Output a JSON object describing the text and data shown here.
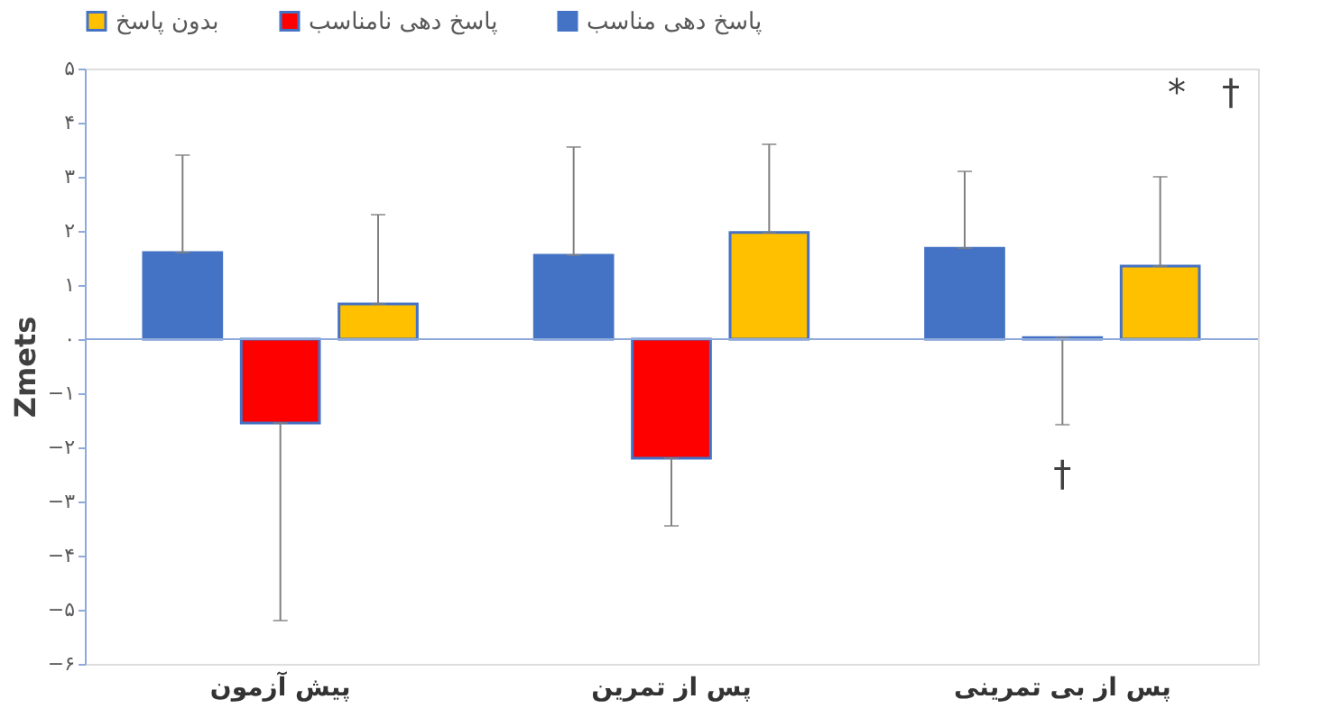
{
  "chart_data": {
    "type": "bar",
    "ylabel": "Zmets",
    "categories": [
      "پیش آزمون",
      "پس از تمرین",
      "پس از بی تمرینی"
    ],
    "series": [
      {
        "name": "پاسخ دهی مناسب",
        "color": "#4472c4",
        "values": [
          1.6,
          1.55,
          1.68
        ],
        "errors": [
          [
            1.6,
            3.4
          ],
          [
            1.55,
            3.55
          ],
          [
            1.68,
            3.1
          ]
        ]
      },
      {
        "name": "پاسخ دهی نامناسب",
        "color": "#ff0000",
        "values": [
          -1.55,
          -2.2,
          0.03
        ],
        "errors": [
          [
            -5.2,
            -1.55
          ],
          [
            -3.45,
            -2.2
          ],
          [
            -1.58,
            0.03
          ]
        ]
      },
      {
        "name": "بدون پاسخ",
        "color": "#ffc000",
        "values": [
          0.65,
          1.97,
          1.35
        ],
        "errors": [
          [
            0.65,
            2.3
          ],
          [
            1.97,
            3.6
          ],
          [
            1.35,
            3.0
          ]
        ]
      }
    ],
    "ylim": [
      -6,
      5
    ],
    "yticks": [
      {
        "value": 5,
        "label": "۵"
      },
      {
        "value": 4,
        "label": "۴"
      },
      {
        "value": 3,
        "label": "۳"
      },
      {
        "value": 2,
        "label": "۲"
      },
      {
        "value": 1,
        "label": "۱"
      },
      {
        "value": 0,
        "label": "۰"
      },
      {
        "value": -1,
        "label": "−۱"
      },
      {
        "value": -2,
        "label": "−۲"
      },
      {
        "value": -3,
        "label": "−۳"
      },
      {
        "value": -4,
        "label": "−۴"
      },
      {
        "value": -5,
        "label": "−۵"
      },
      {
        "value": -6,
        "label": "−۶"
      }
    ],
    "ref_lines": [
      {
        "axis": "y",
        "value": 0,
        "color": "#8eaadb"
      }
    ],
    "annotations": [
      "*",
      "†",
      {
        "text": "†",
        "x": "پس از بی تمرینی",
        "y": -1.58
      }
    ],
    "grid": false,
    "legend": "top"
  }
}
